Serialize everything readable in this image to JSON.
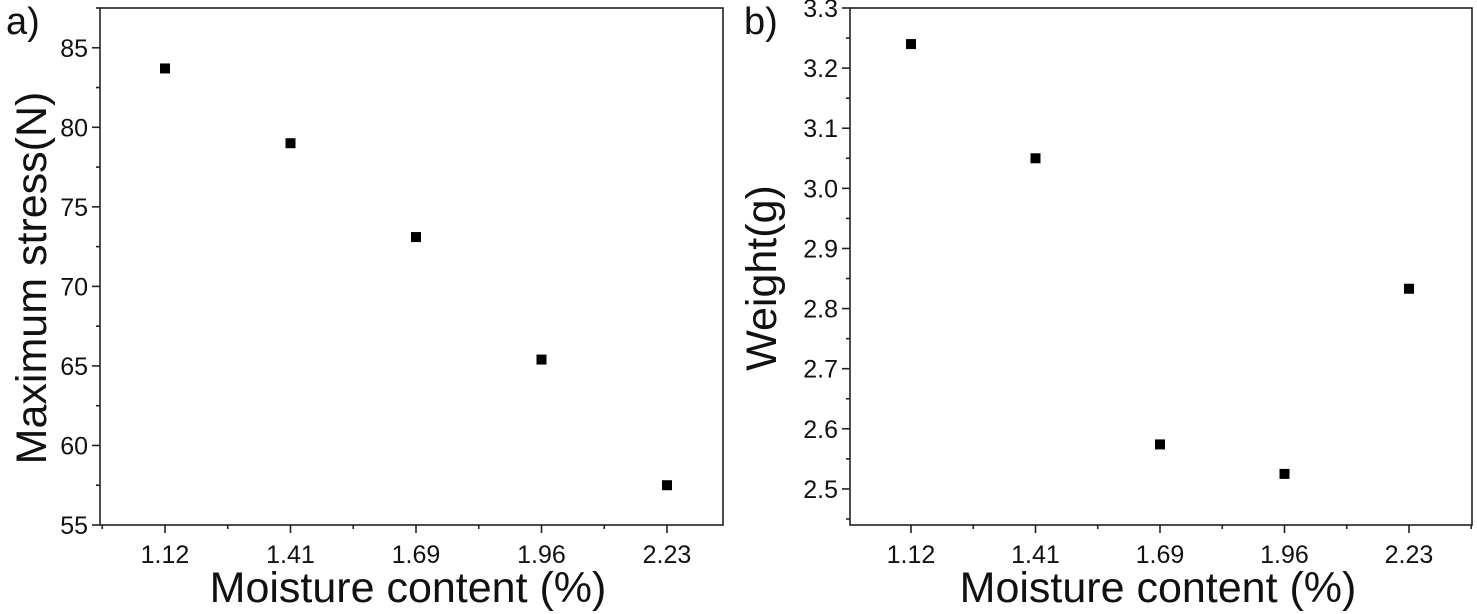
{
  "chart_data": [
    {
      "type": "scatter",
      "panel_label": "a)",
      "title": "",
      "xlabel": "Moisture content (%)",
      "ylabel": "Maximum stress(N)",
      "x_tick_labels": [
        "1.12",
        "1.41",
        "1.69",
        "1.96",
        "2.23"
      ],
      "y_ticks": [
        55,
        60,
        65,
        70,
        75,
        80,
        85
      ],
      "ylim": [
        55,
        87.5
      ],
      "marker_color": "#000000",
      "grid": false,
      "points": [
        {
          "x": "1.12",
          "y": 83.7
        },
        {
          "x": "1.41",
          "y": 79.0
        },
        {
          "x": "1.69",
          "y": 73.1
        },
        {
          "x": "1.96",
          "y": 65.4
        },
        {
          "x": "2.23",
          "y": 57.5
        }
      ]
    },
    {
      "type": "scatter",
      "panel_label": "b)",
      "title": "",
      "xlabel": "Moisture content (%)",
      "ylabel": "Weight(g)",
      "x_tick_labels": [
        "1.12",
        "1.41",
        "1.69",
        "1.96",
        "2.23"
      ],
      "y_ticks": [
        2.5,
        2.6,
        2.7,
        2.8,
        2.9,
        3.0,
        3.1,
        3.2,
        3.3
      ],
      "ylim": [
        2.44,
        3.3
      ],
      "marker_color": "#000000",
      "grid": false,
      "points": [
        {
          "x": "1.12",
          "y": 3.24
        },
        {
          "x": "1.41",
          "y": 3.05
        },
        {
          "x": "1.69",
          "y": 2.574
        },
        {
          "x": "1.96",
          "y": 2.525
        },
        {
          "x": "2.23",
          "y": 2.833
        }
      ]
    }
  ]
}
